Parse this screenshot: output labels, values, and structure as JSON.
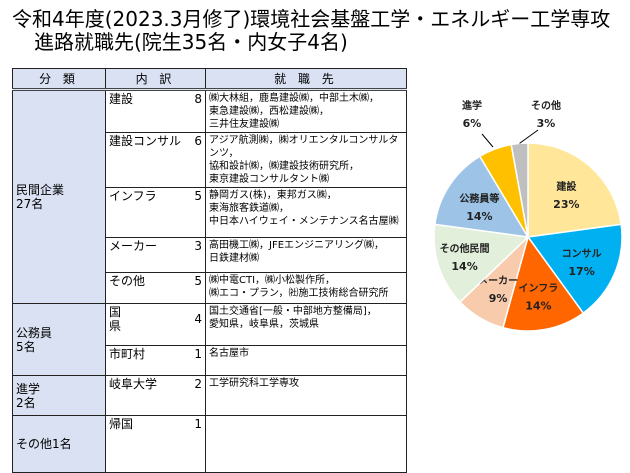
{
  "title": {
    "line1": "令和4年度(2023.3月修了)環境社会基盤工学・エネルギー工学専攻",
    "line2": "進路就職先(院生35名・内女子4名)"
  },
  "table": {
    "headers": [
      "分 類",
      "内 訳",
      "就 職 先"
    ],
    "groups": [
      {
        "label": "民間企業",
        "count": "27名"
      },
      {
        "label": "公務員",
        "count": "5名"
      },
      {
        "label": "進学",
        "count": "2名"
      },
      {
        "label": "その他1名",
        "count": ""
      }
    ],
    "rows": [
      {
        "sub": "建設",
        "n": "8",
        "dest": [
          "㈱大林組，鹿島建設㈱，中部土木㈱，",
          "東急建設㈱，西松建設㈱，",
          "三井住友建設㈱"
        ]
      },
      {
        "sub": "建設コンサル",
        "n": "6",
        "dest": [
          "アジア航測㈱，㈱オリエンタルコンサルタンツ，",
          "協和設計㈱，㈱建設技術研究所，",
          "東京建設コンサルタント㈱"
        ]
      },
      {
        "sub": "インフラ",
        "n": "5",
        "dest": [
          "静岡ガス(株)，東邦ガス㈱，",
          "東海旅客鉄道㈱，",
          "中日本ハイウェイ・メンテナンス名古屋㈱"
        ]
      },
      {
        "sub": "メーカー",
        "n": "3",
        "dest": [
          "高田機工㈱，JFEエンジニアリング㈱，",
          "日鉄建材㈱"
        ]
      },
      {
        "sub": "その他",
        "n": "5",
        "dest": [
          "㈱中電CTI，㈱小松製作所，",
          "㈱エコ・プラン，㈳施工技術総合研究所"
        ]
      },
      {
        "sub": "国\n県",
        "n": "4",
        "dest": [
          "国土交通省[一般・中部地方整備局]，",
          "愛知県，岐阜県，茨城県"
        ]
      },
      {
        "sub": "市町村",
        "n": "1",
        "dest": [
          "名古屋市"
        ]
      },
      {
        "sub": "岐阜大学",
        "n": "2",
        "dest": [
          "工学研究科工学専攻"
        ]
      },
      {
        "sub": "帰国",
        "n": "1",
        "dest": []
      }
    ]
  },
  "chart_data": {
    "type": "pie",
    "start": "top",
    "direction": "clockwise",
    "slices": [
      {
        "label": "建設",
        "value": 8,
        "pct": "23%",
        "color": "#ffe699"
      },
      {
        "label": "コンサル",
        "value": 6,
        "pct": "17%",
        "color": "#00b0f0"
      },
      {
        "label": "インフラ",
        "value": 5,
        "pct": "14%",
        "color": "#ff6600"
      },
      {
        "label": "メーカー",
        "value": 3,
        "pct": "9%",
        "color": "#f8cbad"
      },
      {
        "label": "その他民間",
        "value": 5,
        "pct": "14%",
        "color": "#e2efda"
      },
      {
        "label": "公務員等",
        "value": 5,
        "pct": "14%",
        "color": "#9dc3e6"
      },
      {
        "label": "進学",
        "value": 2,
        "pct": "6%",
        "color": "#ffc000"
      },
      {
        "label": "その他",
        "value": 1,
        "pct": "3%",
        "color": "#bfbfbf"
      }
    ]
  }
}
